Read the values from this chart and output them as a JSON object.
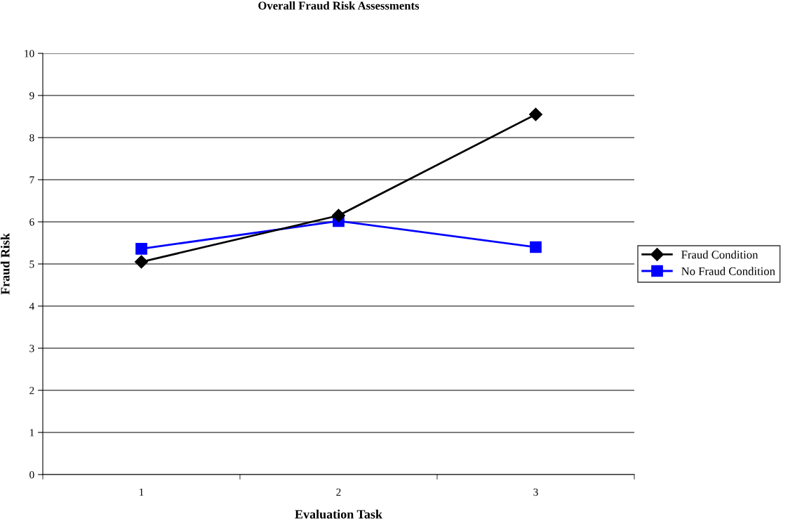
{
  "chart_data": {
    "type": "line",
    "title": "Overall Fraud Risk Assessments",
    "xlabel": "Evaluation Task",
    "ylabel": "Fraud Risk",
    "categories": [
      "1",
      "2",
      "3"
    ],
    "series": [
      {
        "name": "Fraud Condition",
        "color": "#000000",
        "values": [
          5.05,
          6.15,
          8.55
        ],
        "marker": "diamond"
      },
      {
        "name": "No Fraud Condition",
        "color": "#0000ff",
        "values": [
          5.36,
          6.02,
          5.4
        ],
        "marker": "square"
      }
    ],
    "ylim": [
      0,
      10
    ],
    "yticks": [
      0,
      1,
      2,
      3,
      4,
      5,
      6,
      7,
      8,
      9,
      10
    ],
    "grid": "y",
    "legend": "right",
    "line_style": "solid"
  }
}
